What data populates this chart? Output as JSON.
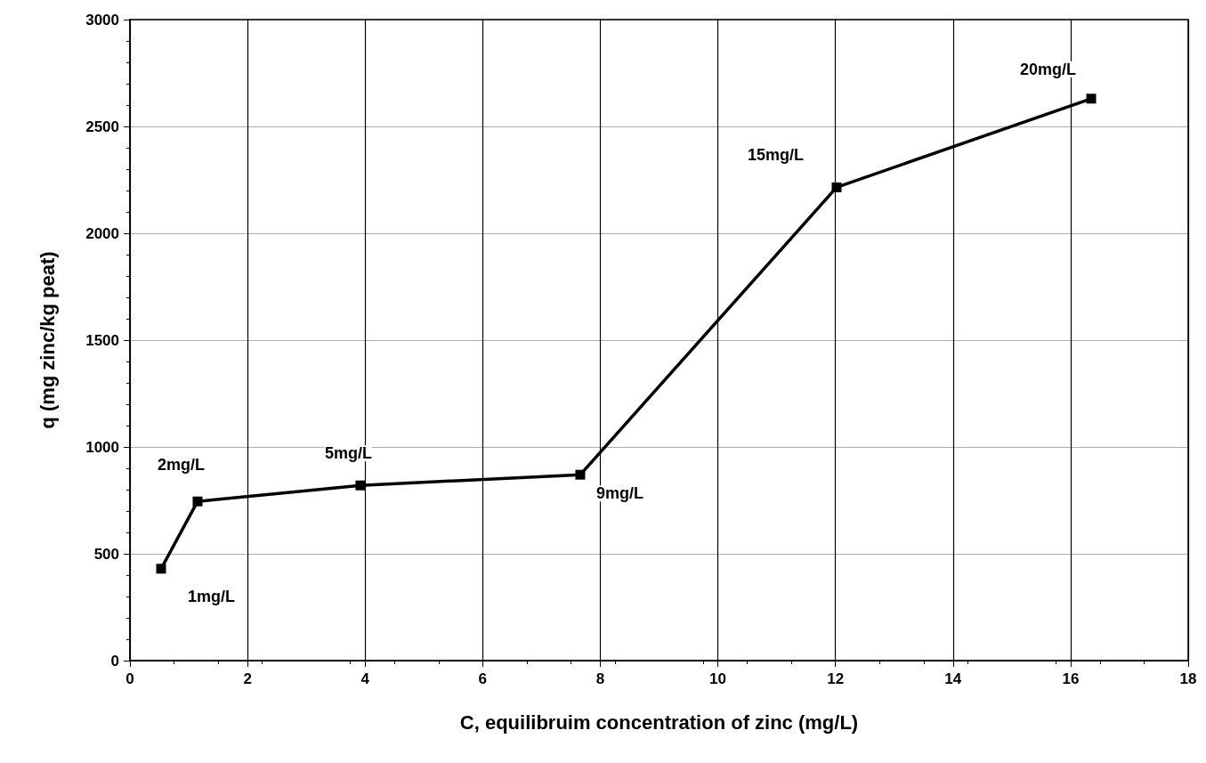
{
  "chart_data": {
    "type": "line",
    "xlabel": "C, equilibruim concentration of zinc (mg/L)",
    "ylabel": "q (mg zinc/kg peat)",
    "x": [
      0.53,
      1.15,
      3.92,
      7.66,
      12.02,
      16.35
    ],
    "series": [
      {
        "color": "#000000",
        "values": [
          430,
          745,
          820,
          870,
          2215,
          2630
        ]
      }
    ],
    "xlim": [
      0,
      18
    ],
    "xticks": [
      0,
      2,
      4,
      6,
      8,
      10,
      12,
      14,
      16,
      18
    ],
    "ylim": [
      0,
      3000
    ],
    "yticks": [
      0,
      500,
      1000,
      1500,
      2000,
      2500,
      3000
    ],
    "grid": true,
    "marker": "square",
    "line_style": "solid",
    "annotations": [
      {
        "text": "1mg/L",
        "x": 0.53,
        "y": 430
      },
      {
        "text": "2mg/L",
        "x": 1.15,
        "y": 745
      },
      {
        "text": "5mg/L",
        "x": 3.92,
        "y": 820
      },
      {
        "text": "9mg/L",
        "x": 7.66,
        "y": 870
      },
      {
        "text": "15mg/L",
        "x": 12.02,
        "y": 2215
      },
      {
        "text": "20mg/L",
        "x": 16.35,
        "y": 2630
      }
    ]
  }
}
